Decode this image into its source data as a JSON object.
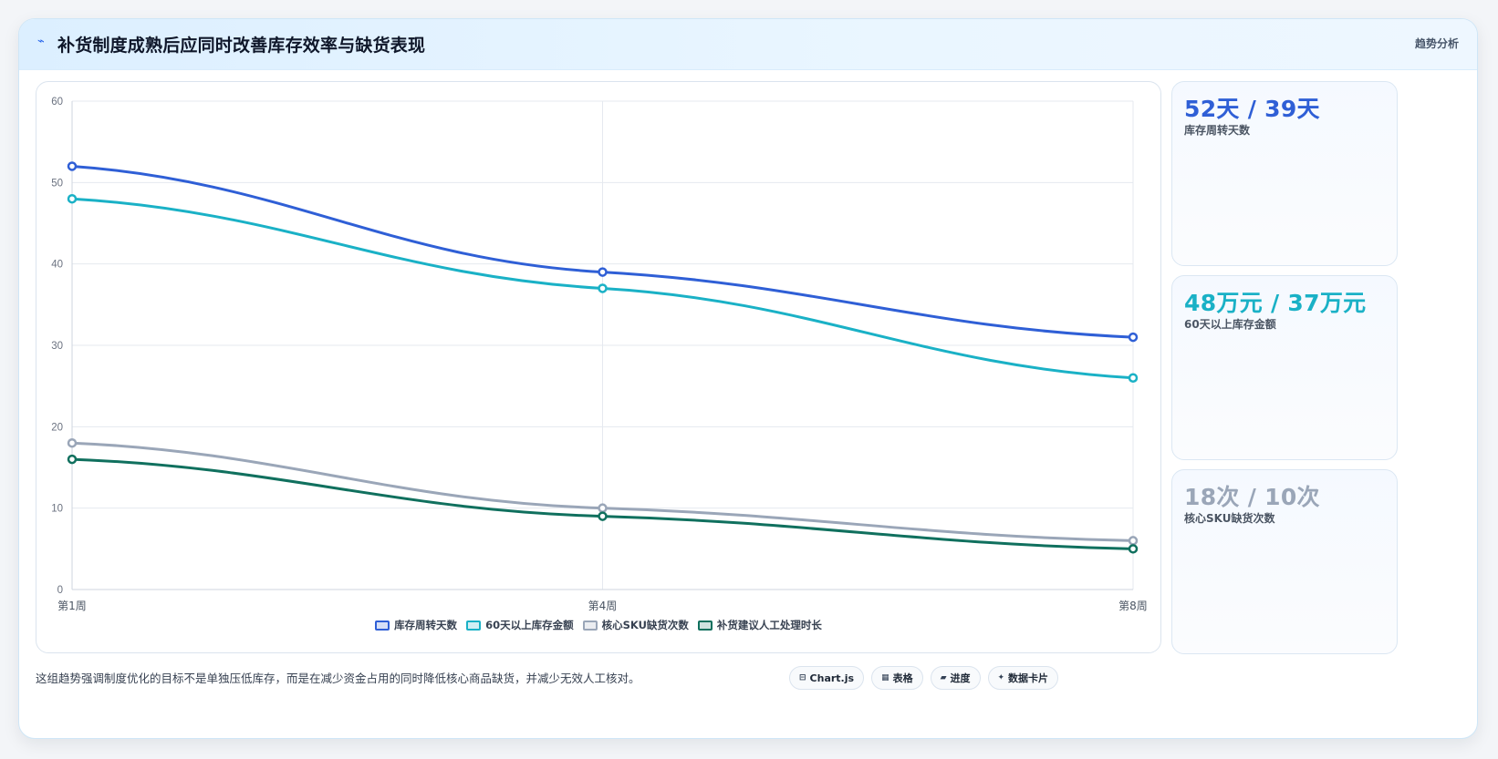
{
  "header": {
    "title": "补货制度成熟后应同时改善库存效率与缺货表现",
    "tag": "趋势分析"
  },
  "colors": {
    "blue": "#2f5fd6",
    "cyan": "#1ab1c6",
    "gray": "#9aa6b8",
    "green": "#10705e"
  },
  "chart_data": {
    "type": "line",
    "categories": [
      "第1周",
      "第4周",
      "第8周"
    ],
    "ylim": [
      0,
      60
    ],
    "yticks": [
      0,
      10,
      20,
      30,
      40,
      50,
      60
    ],
    "grid": true,
    "legend_position": "bottom",
    "series": [
      {
        "name": "库存周转天数",
        "values": [
          52,
          39,
          31
        ],
        "color": "#2f5fd6"
      },
      {
        "name": "60天以上库存金额",
        "values": [
          48,
          37,
          26
        ],
        "color": "#1ab1c6"
      },
      {
        "name": "核心SKU缺货次数",
        "values": [
          18,
          10,
          6
        ],
        "color": "#9aa6b8"
      },
      {
        "name": "补货建议人工处理时长",
        "values": [
          16,
          9,
          5
        ],
        "color": "#10705e"
      }
    ]
  },
  "kpis": [
    {
      "value": "52天 / 39天",
      "label": "库存周转天数",
      "color": "#2f5fd6"
    },
    {
      "value": "48万元 / 37万元",
      "label": "60天以上库存金额",
      "color": "#1ab1c6"
    },
    {
      "value": "18次 / 10次",
      "label": "核心SKU缺货次数",
      "color": "#9aa6b8"
    }
  ],
  "footer": {
    "note": "这组趋势强调制度优化的目标不是单独压低库存，而是在减少资金占用的同时降低核心商品缺货，并减少无效人工核对。",
    "chips": [
      {
        "label": "Chart.js",
        "icon": "⊟"
      },
      {
        "label": "表格",
        "icon": "▦"
      },
      {
        "label": "进度",
        "icon": "▰"
      },
      {
        "label": "数据卡片",
        "icon": "✦"
      }
    ]
  }
}
